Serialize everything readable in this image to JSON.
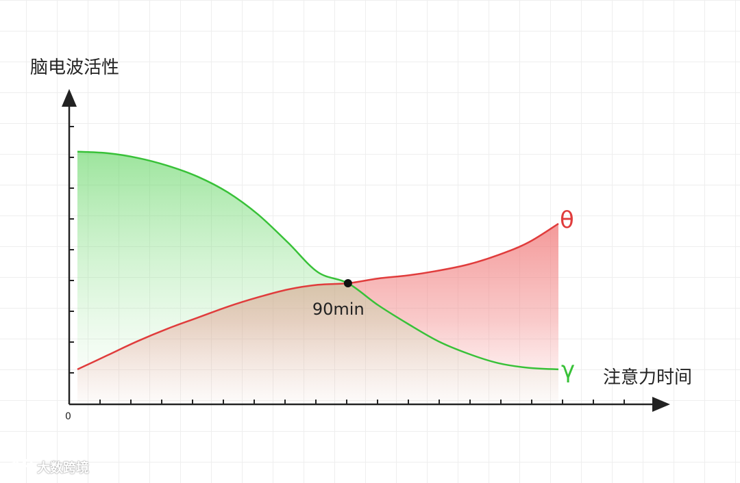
{
  "chart_data": {
    "type": "area",
    "ylabel": "脑电波活性",
    "xlabel": "注意力时间",
    "origin_label": "0",
    "x": [
      0,
      10,
      20,
      30,
      40,
      50,
      60,
      70,
      80,
      90,
      100,
      110,
      120,
      130,
      140,
      150,
      160
    ],
    "series": [
      {
        "name": "γ",
        "color": "#38c138",
        "fill": "#5bd35b",
        "values": [
          8.0,
          7.95,
          7.8,
          7.55,
          7.2,
          6.7,
          6.0,
          5.1,
          4.15,
          3.8,
          3.1,
          2.5,
          1.95,
          1.55,
          1.25,
          1.1,
          1.05
        ]
      },
      {
        "name": "θ",
        "color": "#e03c3c",
        "fill": "#f07777",
        "values": [
          1.05,
          1.5,
          1.95,
          2.35,
          2.7,
          3.05,
          3.35,
          3.6,
          3.75,
          3.8,
          3.95,
          4.05,
          4.2,
          4.4,
          4.7,
          5.1,
          5.7
        ]
      }
    ],
    "ylim": [
      0,
      10
    ],
    "xlim": [
      0,
      160
    ],
    "annotation": {
      "x": 90,
      "y": 3.8,
      "text": "90min"
    },
    "grid": true,
    "legend": "none"
  },
  "watermark": {
    "text": "大数跨境"
  }
}
